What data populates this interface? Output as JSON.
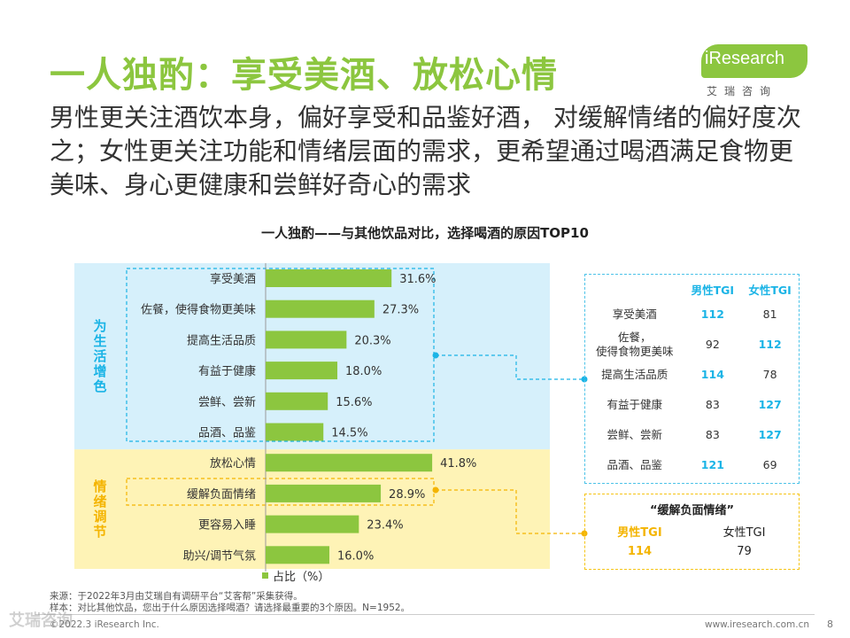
{
  "header": {
    "title": "一人独酌：享受美酒、放松心情",
    "subtitle": "男性更关注酒饮本身，偏好享受和品鉴好酒， 对缓解情绪的偏好度次之；女性更关注功能和情绪层面的需求，更希望通过喝酒满足食物更美味、身心更健康和尝鲜好奇心的需求"
  },
  "logo": {
    "text": "iResearch",
    "sub": "艾瑞咨询"
  },
  "colors": {
    "accent": "#8CC63F",
    "blue": "#1BB4E6",
    "yellow": "#F4B400",
    "blue_bg": "#D6F0FB",
    "yellow_bg": "#FEF3B6"
  },
  "chart_data": {
    "type": "bar",
    "orientation": "horizontal",
    "title": "一人独酌——与其他饮品对比，选择喝酒的原因TOP10",
    "categories": [
      "享受美酒",
      "佐餐，使得食物更美味",
      "提高生活品质",
      "有益于健康",
      "尝鲜、尝新",
      "品酒、品鉴",
      "放松心情",
      "缓解负面情绪",
      "更容易入睡",
      "助兴/调节气氛"
    ],
    "values": [
      31.6,
      27.3,
      20.3,
      18.0,
      15.6,
      14.5,
      41.8,
      28.9,
      23.4,
      16.0
    ],
    "value_labels": [
      "31.6%",
      "27.3%",
      "20.3%",
      "18.0%",
      "15.6%",
      "14.5%",
      "41.8%",
      "28.9%",
      "23.4%",
      "16.0%"
    ],
    "groups": [
      {
        "name": "为生活增色",
        "count": 6
      },
      {
        "name": "情绪调节",
        "count": 4
      }
    ],
    "xlim": [
      0,
      100
    ],
    "legend": "占比（%）",
    "legend_position": "bottom"
  },
  "tgi_table": {
    "headers": [
      "男性TGI",
      "女性TGI"
    ],
    "rows": [
      {
        "label": "享受美酒",
        "male": "112",
        "female": "81",
        "hi": "male"
      },
      {
        "label": "佐餐，\n使得食物更美味",
        "male": "92",
        "female": "112",
        "hi": "female"
      },
      {
        "label": "提高生活品质",
        "male": "114",
        "female": "78",
        "hi": "male"
      },
      {
        "label": "有益于健康",
        "male": "83",
        "female": "127",
        "hi": "female"
      },
      {
        "label": "尝鲜、尝新",
        "male": "83",
        "female": "127",
        "hi": "female"
      },
      {
        "label": "品酒、品鉴",
        "male": "121",
        "female": "69",
        "hi": "male"
      }
    ]
  },
  "emotion_table": {
    "title": "“缓解负面情绪”",
    "male_header": "男性TGI",
    "female_header": "女性TGI",
    "male_value": "114",
    "female_value": "79"
  },
  "footer": {
    "source_line1": "来源：于2022年3月由艾瑞自有调研平台“艾客帮”采集获得。",
    "source_line2": "样本：对比其他饮品，您出于什么原因选择喝酒？请选择最重要的3个原因。N=1952。",
    "copyright": "©2022.3 iResearch Inc.",
    "site": "www.iresearch.com.cn",
    "page": "8",
    "watermark": "艾瑞咨询"
  }
}
